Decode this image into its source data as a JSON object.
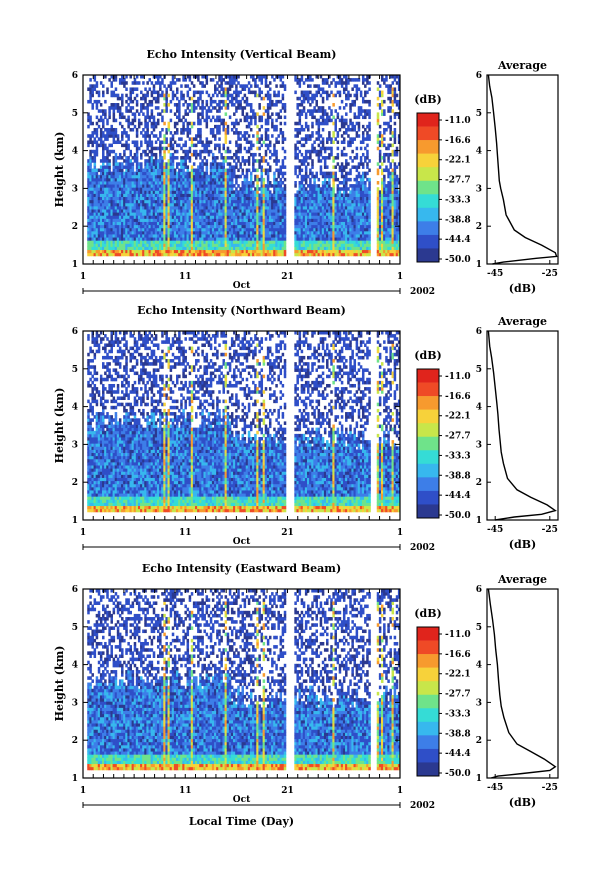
{
  "chart_data": [
    {
      "type": "heatmap",
      "title": "Echo Intensity (Vertical Beam)",
      "ylabel": "Height (km)",
      "ylim": [
        1,
        6
      ],
      "yticks": [
        "1",
        "2",
        "3",
        "4",
        "5",
        "6"
      ],
      "xticks": [
        "1",
        "11",
        "21",
        "1"
      ],
      "month_label": "Oct",
      "year_label": "2002",
      "colorbar": {
        "unit": "(dB)",
        "levels": [
          "-11.0",
          "-16.6",
          "-22.1",
          "-27.7",
          "-33.3",
          "-38.8",
          "-44.4",
          "-50.0"
        ],
        "range": [
          -50.0,
          -11.0
        ]
      },
      "profile": {
        "title": "Average",
        "xlabel": "(dB)",
        "xticks": [
          "-45",
          "-25"
        ],
        "xlim": [
          -48,
          -22
        ],
        "points": [
          [
            -47.5,
            6.0
          ],
          [
            -47.0,
            5.7
          ],
          [
            -46.2,
            5.4
          ],
          [
            -45.6,
            5.0
          ],
          [
            -45.0,
            4.6
          ],
          [
            -44.5,
            4.2
          ],
          [
            -44.2,
            3.9
          ],
          [
            -43.8,
            3.5
          ],
          [
            -43.5,
            3.2
          ],
          [
            -43.0,
            3.0
          ],
          [
            -42.0,
            2.7
          ],
          [
            -41.0,
            2.3
          ],
          [
            -38.0,
            1.9
          ],
          [
            -34.0,
            1.7
          ],
          [
            -28.0,
            1.5
          ],
          [
            -23.0,
            1.3
          ],
          [
            -22.5,
            1.2
          ],
          [
            -30.0,
            1.15
          ],
          [
            -42.0,
            1.05
          ],
          [
            -46.0,
            1.0
          ]
        ]
      }
    },
    {
      "type": "heatmap",
      "title": "Echo Intensity (Northward Beam)",
      "ylabel": "Height (km)",
      "ylim": [
        1,
        6
      ],
      "yticks": [
        "1",
        "2",
        "3",
        "4",
        "5",
        "6"
      ],
      "xticks": [
        "1",
        "11",
        "21",
        "1"
      ],
      "month_label": "Oct",
      "year_label": "2002",
      "colorbar": {
        "unit": "(dB)",
        "levels": [
          "-11.0",
          "-16.6",
          "-22.1",
          "-27.7",
          "-33.3",
          "-38.8",
          "-44.4",
          "-50.0"
        ],
        "range": [
          -50.0,
          -11.0
        ]
      },
      "profile": {
        "title": "Average",
        "xlabel": "(dB)",
        "xticks": [
          "-45",
          "-25"
        ],
        "xlim": [
          -48,
          -22
        ],
        "points": [
          [
            -47.5,
            6.0
          ],
          [
            -47.0,
            5.6
          ],
          [
            -46.3,
            5.3
          ],
          [
            -45.6,
            4.9
          ],
          [
            -45.0,
            4.5
          ],
          [
            -44.4,
            4.1
          ],
          [
            -44.0,
            3.8
          ],
          [
            -43.6,
            3.4
          ],
          [
            -43.2,
            3.1
          ],
          [
            -42.8,
            2.8
          ],
          [
            -42.0,
            2.5
          ],
          [
            -40.5,
            2.1
          ],
          [
            -37.0,
            1.8
          ],
          [
            -32.0,
            1.6
          ],
          [
            -26.0,
            1.4
          ],
          [
            -23.0,
            1.25
          ],
          [
            -28.0,
            1.15
          ],
          [
            -38.0,
            1.08
          ],
          [
            -45.0,
            1.0
          ]
        ]
      }
    },
    {
      "type": "heatmap",
      "title": "Echo Intensity (Eastward Beam)",
      "ylabel": "Height (km)",
      "xlabel": "Local Time (Day)",
      "ylim": [
        1,
        6
      ],
      "yticks": [
        "1",
        "2",
        "3",
        "4",
        "5",
        "6"
      ],
      "xticks": [
        "1",
        "11",
        "21",
        "1"
      ],
      "month_label": "Oct",
      "year_label": "2002",
      "colorbar": {
        "unit": "(dB)",
        "levels": [
          "-11.0",
          "-16.6",
          "-22.1",
          "-27.7",
          "-33.3",
          "-38.8",
          "-44.4",
          "-50.0"
        ],
        "range": [
          -50.0,
          -11.0
        ]
      },
      "profile": {
        "title": "Average",
        "xlabel": "(dB)",
        "xticks": [
          "-45",
          "-25"
        ],
        "xlim": [
          -48,
          -22
        ],
        "points": [
          [
            -47.5,
            6.0
          ],
          [
            -46.8,
            5.6
          ],
          [
            -46.0,
            5.2
          ],
          [
            -45.3,
            4.8
          ],
          [
            -44.8,
            4.4
          ],
          [
            -44.2,
            4.0
          ],
          [
            -43.8,
            3.6
          ],
          [
            -43.3,
            3.2
          ],
          [
            -42.8,
            2.9
          ],
          [
            -41.8,
            2.6
          ],
          [
            -40.0,
            2.2
          ],
          [
            -37.0,
            1.9
          ],
          [
            -32.0,
            1.7
          ],
          [
            -27.0,
            1.5
          ],
          [
            -23.0,
            1.3
          ],
          [
            -25.0,
            1.2
          ],
          [
            -35.0,
            1.12
          ],
          [
            -44.0,
            1.05
          ],
          [
            -46.5,
            1.0
          ]
        ]
      }
    }
  ],
  "colors": {
    "scale": [
      "#2b3990",
      "#2f4fc8",
      "#3d7ee8",
      "#37b8ee",
      "#35dcd6",
      "#6fe38a",
      "#c8e64a",
      "#f7d23a",
      "#f79a2e",
      "#ef4a26",
      "#e0241c"
    ]
  }
}
